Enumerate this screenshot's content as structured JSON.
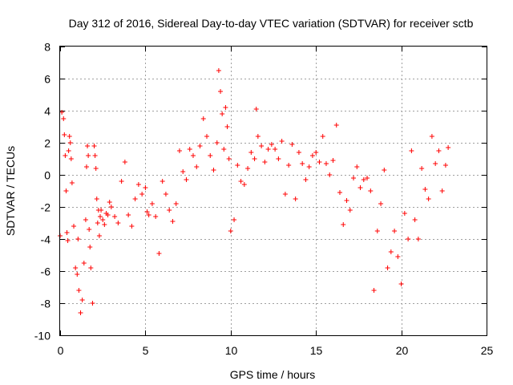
{
  "chart_data": {
    "type": "scatter",
    "title": "Day 312 of 2016, Sidereal Day-to-day VTEC variation (SDTVAR) for receiver sctb",
    "xlabel": "GPS time / hours",
    "ylabel": "SDTVAR / TECUs",
    "xlim": [
      0,
      25
    ],
    "ylim": [
      -10,
      8
    ],
    "xticks": [
      0,
      5,
      10,
      15,
      20,
      25
    ],
    "yticks": [
      -10,
      -8,
      -6,
      -4,
      -2,
      0,
      2,
      4,
      6,
      8
    ],
    "xtick_labels": [
      "0",
      "5",
      "10",
      "15",
      "20",
      "25"
    ],
    "ytick_labels": [
      "-10",
      "-8",
      "-6",
      "-4",
      "-2",
      "0",
      "2",
      "4",
      "6",
      "8"
    ],
    "grid": true,
    "legend": "none",
    "marker": "plus",
    "color": "#ff0000",
    "series": [
      {
        "name": "SDTVAR",
        "x": [
          0.0,
          0.1,
          0.2,
          0.25,
          0.3,
          0.35,
          0.4,
          0.45,
          0.5,
          0.55,
          0.6,
          0.65,
          0.7,
          0.8,
          0.9,
          1.0,
          1.05,
          1.1,
          1.2,
          1.3,
          1.4,
          1.5,
          1.55,
          1.6,
          1.65,
          1.7,
          1.75,
          1.8,
          1.9,
          2.0,
          2.05,
          2.1,
          2.15,
          2.2,
          2.25,
          2.3,
          2.35,
          2.4,
          2.5,
          2.6,
          2.7,
          2.8,
          2.9,
          3.0,
          3.2,
          3.4,
          3.6,
          3.8,
          4.0,
          4.2,
          4.4,
          4.6,
          4.8,
          5.0,
          5.1,
          5.2,
          5.4,
          5.6,
          5.8,
          6.0,
          6.2,
          6.4,
          6.6,
          6.8,
          7.0,
          7.2,
          7.4,
          7.6,
          7.8,
          8.0,
          8.2,
          8.4,
          8.6,
          8.8,
          9.0,
          9.2,
          9.3,
          9.4,
          9.5,
          9.6,
          9.7,
          9.8,
          9.9,
          10.0,
          10.2,
          10.4,
          10.6,
          10.8,
          11.0,
          11.2,
          11.4,
          11.5,
          11.6,
          11.8,
          12.0,
          12.2,
          12.4,
          12.6,
          12.8,
          13.0,
          13.2,
          13.4,
          13.6,
          13.8,
          14.0,
          14.2,
          14.4,
          14.6,
          14.8,
          15.0,
          15.2,
          15.4,
          15.6,
          15.8,
          16.0,
          16.2,
          16.4,
          16.6,
          16.8,
          17.0,
          17.2,
          17.4,
          17.6,
          17.8,
          18.0,
          18.2,
          18.4,
          18.6,
          18.8,
          19.0,
          19.2,
          19.4,
          19.6,
          19.8,
          20.0,
          20.2,
          20.4,
          20.6,
          20.8,
          21.0,
          21.2,
          21.4,
          21.6,
          21.8,
          22.0,
          22.2,
          22.4,
          22.6,
          22.75
        ],
        "y": [
          -3.8,
          3.9,
          3.5,
          2.5,
          1.2,
          -1.0,
          -3.6,
          -4.1,
          1.5,
          2.4,
          2.0,
          1.0,
          -0.5,
          -3.2,
          -5.8,
          -6.2,
          -4.0,
          -7.2,
          -8.6,
          -7.8,
          -5.5,
          -2.8,
          0.5,
          1.8,
          1.2,
          -3.4,
          -4.5,
          -5.8,
          -8.0,
          1.8,
          1.2,
          0.4,
          -1.5,
          -3.0,
          -2.2,
          -3.8,
          -2.6,
          -2.2,
          -2.8,
          -3.1,
          -2.4,
          -2.5,
          -1.7,
          -2.0,
          -2.6,
          -3.0,
          -0.4,
          0.8,
          -2.5,
          -3.2,
          -1.5,
          -0.6,
          -1.2,
          -0.8,
          -2.3,
          -2.5,
          -1.8,
          -2.6,
          -4.9,
          -0.4,
          -1.2,
          -2.2,
          -2.9,
          -1.8,
          1.5,
          0.2,
          -0.3,
          1.6,
          1.2,
          0.5,
          1.8,
          3.5,
          2.4,
          1.2,
          0.3,
          2.0,
          6.5,
          5.2,
          3.8,
          1.6,
          4.2,
          3.0,
          1.0,
          -3.5,
          -2.8,
          0.6,
          -0.4,
          -0.6,
          0.4,
          1.4,
          1.0,
          4.1,
          2.4,
          1.8,
          0.8,
          1.6,
          1.9,
          1.6,
          1.0,
          2.1,
          -1.2,
          0.6,
          1.9,
          -1.5,
          1.4,
          0.7,
          -0.3,
          0.5,
          1.2,
          1.4,
          0.8,
          2.4,
          0.7,
          0.0,
          0.9,
          3.1,
          -1.1,
          -3.1,
          -1.6,
          -2.2,
          -0.2,
          0.5,
          -0.8,
          -0.3,
          -0.2,
          -1.0,
          -7.2,
          -3.5,
          -1.8,
          0.3,
          -5.8,
          -4.8,
          -3.5,
          -5.1,
          -6.8,
          -2.4,
          -4.0,
          1.5,
          -2.8,
          -4.0,
          0.4,
          -0.9,
          -1.5,
          2.4,
          0.7,
          1.5,
          -1.0,
          0.6,
          1.7
        ]
      }
    ]
  }
}
